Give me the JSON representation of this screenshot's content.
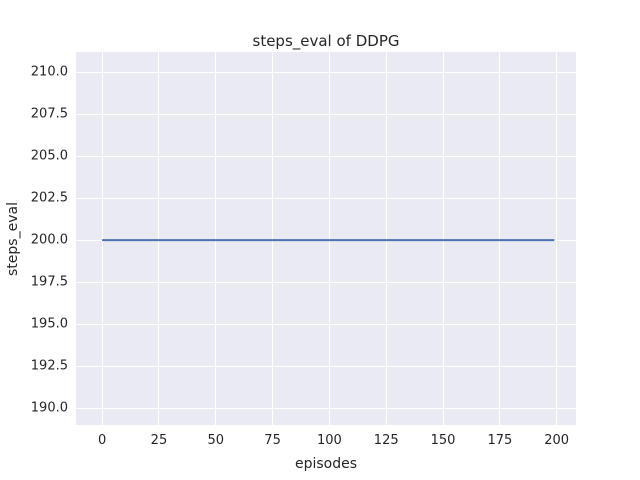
{
  "chart_data": {
    "type": "line",
    "title": "steps_eval of DDPG",
    "xlabel": "episodes",
    "ylabel": "steps_eval",
    "xlim": [
      -11.5,
      208.5
    ],
    "ylim": [
      189.0,
      211.2
    ],
    "x_ticks": [
      0,
      25,
      50,
      75,
      100,
      125,
      150,
      175,
      200
    ],
    "x_tick_labels": [
      "0",
      "25",
      "50",
      "75",
      "100",
      "125",
      "150",
      "175",
      "200"
    ],
    "y_ticks": [
      190.0,
      192.5,
      195.0,
      197.5,
      200.0,
      202.5,
      205.0,
      207.5,
      210.0
    ],
    "y_tick_labels": [
      "190.0",
      "192.5",
      "195.0",
      "197.5",
      "200.0",
      "202.5",
      "205.0",
      "207.5",
      "210.0"
    ],
    "grid": true,
    "legend": false,
    "series": [
      {
        "name": "DDPG steps_eval",
        "color": "#4c72b0",
        "x": [
          0,
          199
        ],
        "y": [
          200,
          200
        ],
        "note": "constant value 200 for all episodes 0 to 199"
      }
    ],
    "style": {
      "figure_bg": "#ffffff",
      "plot_bg": "#eaeaf2",
      "grid_color": "#ffffff",
      "text_color": "#262626",
      "line_width": 2
    }
  }
}
